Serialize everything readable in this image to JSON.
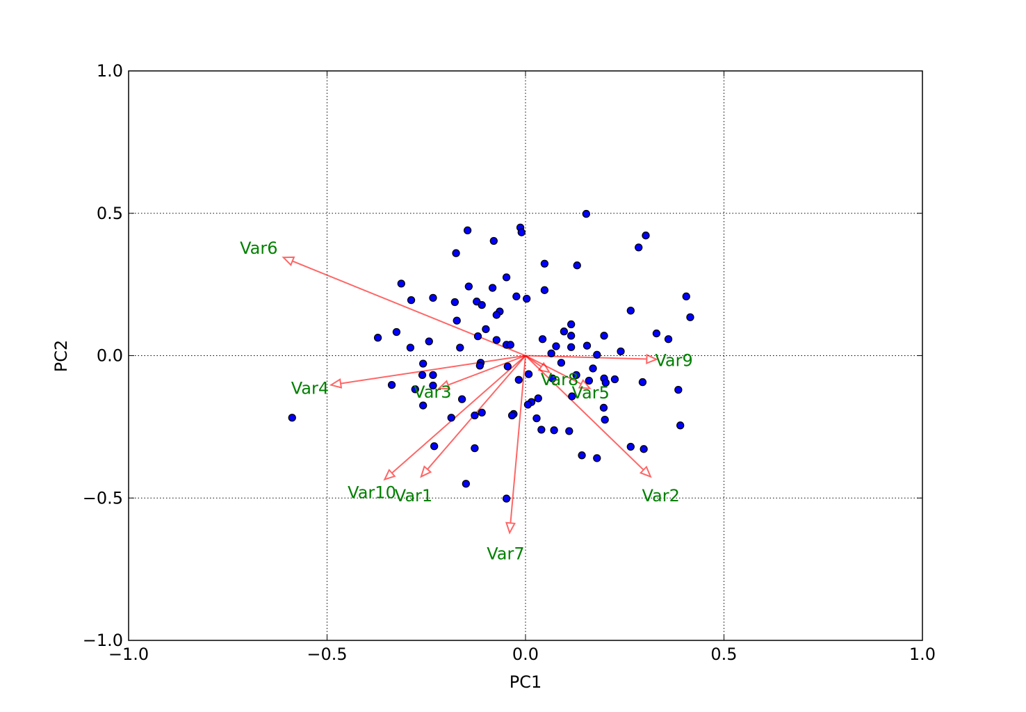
{
  "chart_data": {
    "type": "scatter",
    "title": "",
    "xlabel": "PC1",
    "ylabel": "PC2",
    "xlim": [
      -1.0,
      1.0
    ],
    "ylim": [
      -1.0,
      1.0
    ],
    "xticks": [
      {
        "value": -1.0,
        "label": "−1.0"
      },
      {
        "value": -0.5,
        "label": "−0.5"
      },
      {
        "value": 0.0,
        "label": "0.0"
      },
      {
        "value": 0.5,
        "label": "0.5"
      },
      {
        "value": 1.0,
        "label": "1.0"
      }
    ],
    "yticks": [
      {
        "value": -1.0,
        "label": "−1.0"
      },
      {
        "value": -0.5,
        "label": "−0.5"
      },
      {
        "value": 0.0,
        "label": "0.0"
      },
      {
        "value": 0.5,
        "label": "0.5"
      },
      {
        "value": 1.0,
        "label": "1.0"
      }
    ],
    "grid": true,
    "grid_style": "dotted",
    "point_color": "#0000ff",
    "point_edge_color": "#000000",
    "arrow_color": "#ff0000",
    "label_color": "#008000",
    "points": [
      [
        0.153,
        0.498
      ],
      [
        -0.146,
        0.44
      ],
      [
        -0.013,
        0.45
      ],
      [
        -0.01,
        0.433
      ],
      [
        0.303,
        0.422
      ],
      [
        -0.08,
        0.403
      ],
      [
        0.285,
        0.38
      ],
      [
        -0.175,
        0.36
      ],
      [
        0.048,
        0.323
      ],
      [
        0.13,
        0.317
      ],
      [
        -0.048,
        0.275
      ],
      [
        -0.313,
        0.253
      ],
      [
        -0.143,
        0.243
      ],
      [
        -0.083,
        0.238
      ],
      [
        0.048,
        0.23
      ],
      [
        -0.233,
        0.203
      ],
      [
        -0.023,
        0.208
      ],
      [
        0.003,
        0.2
      ],
      [
        0.405,
        0.208
      ],
      [
        -0.178,
        0.188
      ],
      [
        -0.123,
        0.19
      ],
      [
        -0.288,
        0.195
      ],
      [
        -0.11,
        0.178
      ],
      [
        0.265,
        0.158
      ],
      [
        -0.065,
        0.155
      ],
      [
        -0.073,
        0.143
      ],
      [
        0.415,
        0.135
      ],
      [
        0.115,
        0.11
      ],
      [
        -0.173,
        0.123
      ],
      [
        -0.1,
        0.093
      ],
      [
        0.097,
        0.085
      ],
      [
        0.115,
        0.07
      ],
      [
        0.198,
        0.07
      ],
      [
        0.33,
        0.078
      ],
      [
        -0.325,
        0.083
      ],
      [
        -0.12,
        0.068
      ],
      [
        0.043,
        0.058
      ],
      [
        0.36,
        0.058
      ],
      [
        -0.372,
        0.063
      ],
      [
        -0.073,
        0.055
      ],
      [
        -0.243,
        0.05
      ],
      [
        -0.048,
        0.038
      ],
      [
        -0.038,
        0.038
      ],
      [
        0.077,
        0.033
      ],
      [
        0.115,
        0.03
      ],
      [
        0.155,
        0.035
      ],
      [
        -0.29,
        0.028
      ],
      [
        -0.165,
        0.028
      ],
      [
        0.24,
        0.015
      ],
      [
        0.065,
        0.008
      ],
      [
        0.18,
        0.003
      ],
      [
        -0.258,
        -0.028
      ],
      [
        -0.113,
        -0.025
      ],
      [
        0.09,
        -0.025
      ],
      [
        -0.115,
        -0.035
      ],
      [
        -0.045,
        -0.038
      ],
      [
        0.17,
        -0.045
      ],
      [
        0.008,
        -0.065
      ],
      [
        -0.26,
        -0.068
      ],
      [
        -0.233,
        -0.068
      ],
      [
        0.128,
        -0.068
      ],
      [
        0.068,
        -0.08
      ],
      [
        0.198,
        -0.08
      ],
      [
        0.225,
        -0.083
      ],
      [
        -0.017,
        -0.085
      ],
      [
        0.16,
        -0.088
      ],
      [
        0.295,
        -0.093
      ],
      [
        0.202,
        -0.095
      ],
      [
        -0.337,
        -0.103
      ],
      [
        -0.233,
        -0.105
      ],
      [
        -0.278,
        -0.118
      ],
      [
        0.385,
        -0.12
      ],
      [
        0.117,
        -0.143
      ],
      [
        -0.16,
        -0.153
      ],
      [
        0.032,
        -0.15
      ],
      [
        0.015,
        -0.163
      ],
      [
        0.006,
        -0.172
      ],
      [
        -0.258,
        -0.175
      ],
      [
        0.197,
        -0.183
      ],
      [
        -0.11,
        -0.2
      ],
      [
        -0.03,
        -0.205
      ],
      [
        -0.034,
        -0.21
      ],
      [
        -0.128,
        -0.21
      ],
      [
        -0.187,
        -0.218
      ],
      [
        0.028,
        -0.22
      ],
      [
        -0.588,
        -0.218
      ],
      [
        0.2,
        -0.225
      ],
      [
        0.39,
        -0.245
      ],
      [
        0.04,
        -0.26
      ],
      [
        0.072,
        -0.262
      ],
      [
        0.11,
        -0.265
      ],
      [
        -0.23,
        -0.318
      ],
      [
        -0.128,
        -0.325
      ],
      [
        0.265,
        -0.32
      ],
      [
        0.298,
        -0.328
      ],
      [
        0.142,
        -0.35
      ],
      [
        0.18,
        -0.36
      ],
      [
        -0.15,
        -0.45
      ],
      [
        -0.048,
        -0.502
      ]
    ],
    "vectors": [
      {
        "name": "Var1",
        "x": -0.263,
        "y": -0.425,
        "label_x": -0.282,
        "label_y": -0.49
      },
      {
        "name": "Var2",
        "x": 0.315,
        "y": -0.425,
        "label_x": 0.341,
        "label_y": -0.49
      },
      {
        "name": "Var3",
        "x": -0.218,
        "y": -0.115,
        "label_x": -0.234,
        "label_y": -0.126
      },
      {
        "name": "Var4",
        "x": -0.49,
        "y": -0.103,
        "label_x": -0.543,
        "label_y": -0.112
      },
      {
        "name": "Var5",
        "x": 0.162,
        "y": -0.115,
        "label_x": 0.164,
        "label_y": -0.128
      },
      {
        "name": "Var6",
        "x": -0.61,
        "y": 0.345,
        "label_x": -0.672,
        "label_y": 0.38
      },
      {
        "name": "Var7",
        "x": -0.04,
        "y": -0.622,
        "label_x": -0.05,
        "label_y": -0.693
      },
      {
        "name": "Var8",
        "x": 0.06,
        "y": -0.058,
        "label_x": 0.086,
        "label_y": -0.082
      },
      {
        "name": "Var9",
        "x": 0.33,
        "y": -0.013,
        "label_x": 0.374,
        "label_y": -0.015
      },
      {
        "name": "Var10",
        "x": -0.355,
        "y": -0.435,
        "label_x": -0.387,
        "label_y": -0.479
      }
    ]
  }
}
